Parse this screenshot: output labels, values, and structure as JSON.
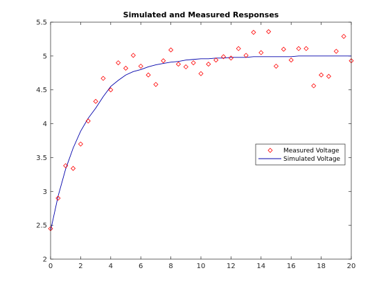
{
  "chart_data": {
    "type": "line",
    "title": "Simulated and Measured Responses",
    "xlabel": "",
    "ylabel": "",
    "xlim": [
      0,
      20
    ],
    "ylim": [
      2,
      5.5
    ],
    "xticks": [
      0,
      2,
      4,
      6,
      8,
      10,
      12,
      14,
      16,
      18,
      20
    ],
    "yticks": [
      2,
      2.5,
      3,
      3.5,
      4,
      4.5,
      5,
      5.5
    ],
    "xtick_labels": [
      "0",
      "2",
      "4",
      "6",
      "8",
      "10",
      "12",
      "14",
      "16",
      "18",
      "20"
    ],
    "ytick_labels": [
      "2",
      "2.5",
      "3",
      "3.5",
      "4",
      "4.5",
      "5",
      "5.5"
    ],
    "grid": false,
    "legend_position": "right",
    "series": [
      {
        "name": "Measured Voltage",
        "type": "scatter",
        "marker": "diamond",
        "color": "#ff0000",
        "x": [
          0,
          0.5,
          1,
          1.5,
          2,
          2.5,
          3,
          3.5,
          4,
          4.5,
          5,
          5.5,
          6,
          6.5,
          7,
          7.5,
          8,
          8.5,
          9,
          9.5,
          10,
          10.5,
          11,
          11.5,
          12,
          12.5,
          13,
          13.5,
          14,
          14.5,
          15,
          15.5,
          16,
          16.5,
          17,
          17.5,
          18,
          18.5,
          19,
          19.5,
          20
        ],
        "y": [
          2.45,
          2.9,
          3.38,
          3.34,
          3.7,
          4.04,
          4.33,
          4.67,
          4.5,
          4.9,
          4.82,
          5.01,
          4.85,
          4.72,
          4.58,
          4.93,
          5.09,
          4.88,
          4.84,
          4.9,
          4.74,
          4.88,
          4.94,
          4.99,
          4.97,
          5.11,
          5.01,
          5.35,
          5.05,
          5.36,
          4.85,
          5.1,
          4.94,
          5.11,
          5.11,
          4.56,
          4.72,
          4.7,
          5.07,
          5.29,
          4.93
        ]
      },
      {
        "name": "Simulated Voltage",
        "type": "line",
        "color": "#0000aa",
        "x": [
          0,
          0.5,
          1,
          1.5,
          2,
          2.5,
          3,
          3.5,
          4,
          4.5,
          5,
          5.5,
          6,
          6.5,
          7,
          7.5,
          8,
          8.5,
          9,
          9.5,
          10,
          10.5,
          11,
          11.5,
          12,
          12.5,
          13,
          13.5,
          14,
          14.5,
          15,
          15.5,
          16,
          16.5,
          17,
          17.5,
          18,
          18.5,
          19,
          19.5,
          20
        ],
        "y": [
          2.42,
          2.93,
          3.33,
          3.64,
          3.89,
          4.08,
          4.23,
          4.4,
          4.55,
          4.64,
          4.72,
          4.77,
          4.8,
          4.84,
          4.87,
          4.89,
          4.91,
          4.92,
          4.94,
          4.95,
          4.96,
          4.96,
          4.97,
          4.97,
          4.98,
          4.98,
          4.98,
          4.99,
          4.99,
          4.99,
          4.99,
          4.99,
          4.99,
          5.0,
          5.0,
          5.0,
          5.0,
          5.0,
          5.0,
          5.0,
          5.0
        ]
      }
    ]
  }
}
